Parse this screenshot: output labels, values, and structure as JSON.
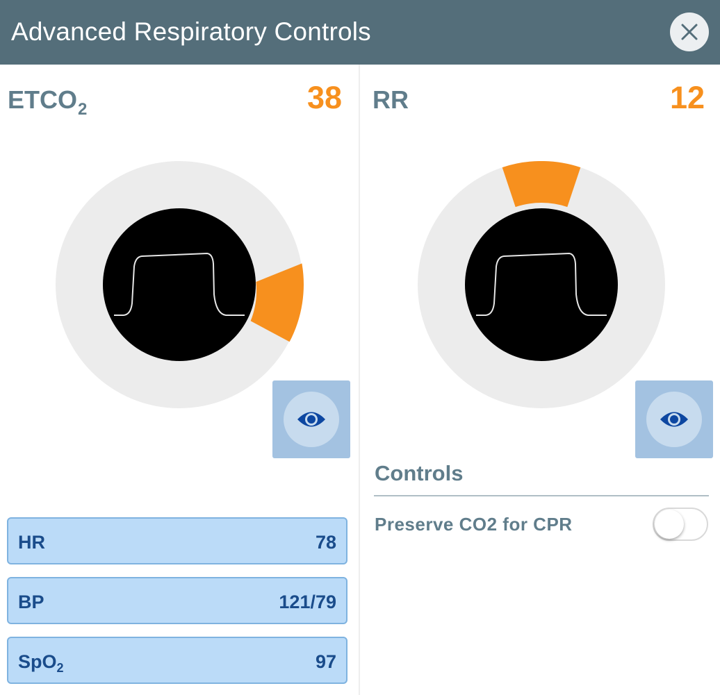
{
  "header": {
    "title": "Advanced Respiratory Controls",
    "close_icon": "close-icon"
  },
  "etco2": {
    "label": "ETCO",
    "label_sub": "2",
    "value": "38",
    "eye_icon": "eye-icon"
  },
  "rr": {
    "label": "RR",
    "value": "12",
    "eye_icon": "eye-icon"
  },
  "vitals": [
    {
      "label": "HR",
      "value": "78"
    },
    {
      "label": "BP",
      "value": "121/79"
    },
    {
      "label": "SpO",
      "label_sub": "2",
      "value": "97"
    }
  ],
  "controls": {
    "title": "Controls",
    "preserve_label": "Preserve CO2 for CPR",
    "preserve_enabled": false
  },
  "colors": {
    "header_bg": "#546e7a",
    "accent": "#f7901e",
    "dial_track": "#ececec",
    "vital_bg": "#bbdbf8",
    "vital_text": "#1a4c8b"
  }
}
